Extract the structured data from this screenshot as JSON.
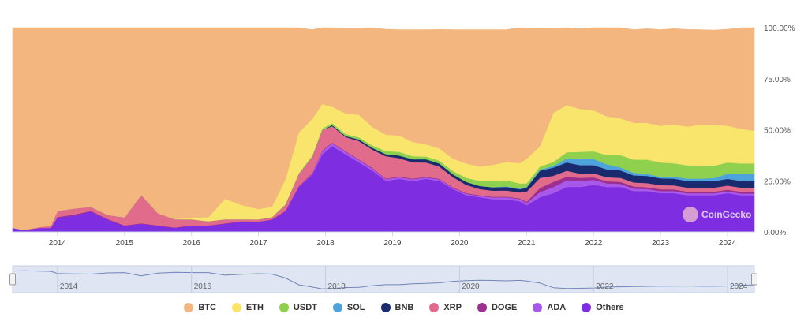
{
  "chart_data": {
    "type": "area",
    "stacked": true,
    "percent": true,
    "title": "",
    "xlabel": "",
    "ylabel": "",
    "ylim": [
      0,
      100
    ],
    "xlim": [
      2013.33,
      2024.4
    ],
    "y_ticks": [
      "0.00%",
      "25.00%",
      "50.00%",
      "75.00%",
      "100.00%"
    ],
    "x_ticks": [
      "2014",
      "2015",
      "2016",
      "2017",
      "2018",
      "2019",
      "2020",
      "2021",
      "2022",
      "2023",
      "2024"
    ],
    "grid": false,
    "legend_position": "bottom",
    "x": [
      2013.33,
      2013.5,
      2013.75,
      2013.9,
      2014.0,
      2014.25,
      2014.5,
      2014.75,
      2015.0,
      2015.25,
      2015.5,
      2015.75,
      2016.0,
      2016.25,
      2016.5,
      2016.75,
      2017.0,
      2017.2,
      2017.4,
      2017.6,
      2017.8,
      2017.95,
      2018.1,
      2018.3,
      2018.5,
      2018.7,
      2018.9,
      2019.1,
      2019.3,
      2019.5,
      2019.7,
      2019.9,
      2020.1,
      2020.3,
      2020.5,
      2020.7,
      2020.9,
      2021.0,
      2021.2,
      2021.4,
      2021.6,
      2021.8,
      2022.0,
      2022.2,
      2022.4,
      2022.6,
      2022.8,
      2023.0,
      2023.2,
      2023.4,
      2023.6,
      2023.8,
      2024.0,
      2024.2,
      2024.4
    ],
    "series": [
      {
        "name": "Others",
        "color": "#7e2ee0",
        "values": [
          2,
          1,
          2,
          2,
          7,
          8,
          10,
          6,
          3,
          4,
          3,
          2,
          3,
          3,
          4,
          5,
          5,
          6,
          10,
          22,
          28,
          38,
          42,
          38,
          34,
          30,
          25,
          26,
          25,
          26,
          25,
          21,
          18,
          17,
          16,
          16,
          15,
          13,
          17,
          19,
          22,
          22,
          23,
          22,
          22,
          20,
          20,
          19,
          19,
          18,
          18,
          18,
          19,
          18,
          18
        ]
      },
      {
        "name": "ADA",
        "color": "#a959ea",
        "values": [
          0,
          0,
          0,
          0,
          0,
          0,
          0,
          0,
          0,
          0,
          0,
          0,
          0,
          0,
          0,
          0,
          0,
          0,
          0,
          0,
          0.5,
          1.5,
          1.5,
          1.2,
          1.2,
          1.0,
          0.8,
          0.8,
          0.8,
          0.7,
          0.7,
          0.6,
          0.7,
          0.7,
          0.9,
          1.0,
          1.1,
          1.2,
          2.5,
          3.0,
          3.2,
          3.0,
          2.5,
          1.8,
          1.5,
          1.2,
          1.0,
          1.0,
          1.0,
          0.9,
          0.9,
          0.9,
          0.9,
          0.8,
          0.8
        ]
      },
      {
        "name": "DOGE",
        "color": "#9b2e8e",
        "values": [
          0,
          0,
          0,
          0,
          0.3,
          0.5,
          0.3,
          0.3,
          0.2,
          0.2,
          0.2,
          0.2,
          0.2,
          0.2,
          0.2,
          0.2,
          0.1,
          0.1,
          0.3,
          0.4,
          0.3,
          0.3,
          0.3,
          0.3,
          0.3,
          0.3,
          0.3,
          0.3,
          0.3,
          0.3,
          0.3,
          0.3,
          0.3,
          0.3,
          0.3,
          0.3,
          0.3,
          0.5,
          2.0,
          2.5,
          1.8,
          1.5,
          1.2,
          1.0,
          1.0,
          1.0,
          0.9,
          0.9,
          0.8,
          0.8,
          0.8,
          0.8,
          0.8,
          0.9,
          0.9
        ]
      },
      {
        "name": "XRP",
        "color": "#e06b8a",
        "values": [
          0,
          0,
          0.5,
          1,
          3,
          3,
          2,
          2,
          4,
          14,
          6,
          4,
          3,
          2,
          2,
          1,
          1,
          1,
          3,
          6,
          8,
          10,
          8,
          7,
          9,
          9,
          11,
          9,
          8,
          7,
          6,
          5,
          4,
          3,
          3,
          3,
          3,
          5,
          5,
          3,
          3,
          2,
          2,
          2,
          2,
          2,
          2,
          2,
          2,
          2,
          2,
          2,
          2,
          2,
          2
        ]
      },
      {
        "name": "BNB",
        "color": "#1a2a6e",
        "values": [
          0,
          0,
          0,
          0,
          0,
          0,
          0,
          0,
          0,
          0,
          0,
          0,
          0,
          0,
          0,
          0,
          0,
          0,
          0,
          0,
          0,
          0,
          0.5,
          0.5,
          0.8,
          0.9,
          1.0,
          1.3,
          1.5,
          1.6,
          1.5,
          1.4,
          1.5,
          1.5,
          1.6,
          1.7,
          1.5,
          2.0,
          3.5,
          4.0,
          4.0,
          4.2,
          4.0,
          3.8,
          3.6,
          3.5,
          3.5,
          3.3,
          3.3,
          3.2,
          3.2,
          3.2,
          3.3,
          3.3,
          3.3
        ]
      },
      {
        "name": "SOL",
        "color": "#4fa3dc",
        "values": [
          0,
          0,
          0,
          0,
          0,
          0,
          0,
          0,
          0,
          0,
          0,
          0,
          0,
          0,
          0,
          0,
          0,
          0,
          0,
          0,
          0,
          0,
          0,
          0,
          0,
          0,
          0,
          0,
          0,
          0,
          0,
          0,
          0,
          0,
          0.1,
          0.3,
          0.3,
          0.3,
          0.5,
          0.8,
          2.0,
          3.0,
          3.0,
          2.5,
          1.5,
          1.2,
          1.0,
          0.8,
          1.0,
          1.2,
          1.2,
          1.5,
          2.5,
          3.5,
          3.5
        ]
      },
      {
        "name": "USDT",
        "color": "#8fd14f",
        "values": [
          0,
          0,
          0,
          0,
          0,
          0,
          0,
          0,
          0,
          0,
          0,
          0,
          0,
          0,
          0,
          0,
          0.1,
          0.2,
          0.3,
          0.3,
          0.5,
          0.8,
          1.0,
          1.0,
          1.0,
          1.2,
          1.5,
          1.8,
          1.5,
          1.3,
          1.4,
          1.6,
          2.0,
          2.5,
          3.0,
          3.0,
          2.5,
          1.8,
          1.5,
          2.0,
          3.0,
          3.5,
          3.8,
          4.5,
          6.0,
          6.5,
          7.0,
          7.0,
          6.5,
          6.5,
          6.5,
          6.0,
          5.5,
          5.0,
          5.0
        ]
      },
      {
        "name": "ETH",
        "color": "#f9e46c",
        "values": [
          0,
          0,
          0,
          0,
          0,
          0,
          0,
          0,
          0,
          0,
          0,
          0,
          1,
          2,
          10,
          7,
          5,
          5,
          12,
          20,
          18,
          12,
          8,
          10,
          11,
          9,
          8,
          8,
          7,
          6,
          6,
          6,
          7,
          7,
          8,
          9,
          10,
          12,
          10,
          24,
          23,
          21,
          20,
          19,
          18,
          18,
          18,
          18,
          19,
          19,
          20,
          20,
          18,
          17,
          16
        ]
      },
      {
        "name": "BTC",
        "color": "#f2b67e",
        "values": [
          98,
          99,
          97.5,
          97,
          89.7,
          88.5,
          87.7,
          91.7,
          92.8,
          81.8,
          90.8,
          93.8,
          92.8,
          92.8,
          83.8,
          86.8,
          88.8,
          87.7,
          74.4,
          51.3,
          43.7,
          37.4,
          38.7,
          41.7,
          42.5,
          48.6,
          51.6,
          51.8,
          54.9,
          56.1,
          58.2,
          63.1,
          65.5,
          67.0,
          66.1,
          64.7,
          66.3,
          63.9,
          57.5,
          41.2,
          38.8,
          39.3,
          40.5,
          43.6,
          44.4,
          45.6,
          46.1,
          47.0,
          46.9,
          47.5,
          46.4,
          46.4,
          47.2,
          49.7,
          50.5
        ]
      }
    ]
  },
  "navigator": {
    "ticks": [
      "2014",
      "2016",
      "2018",
      "2020",
      "2022",
      "2024"
    ]
  },
  "watermark": {
    "text": "CoinGecko"
  }
}
